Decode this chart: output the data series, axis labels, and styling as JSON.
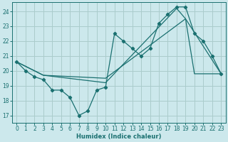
{
  "xlabel": "Humidex (Indice chaleur)",
  "bg_color": "#cce8ec",
  "grid_color": "#aacccc",
  "line_color": "#1a7070",
  "xlim": [
    -0.5,
    23.5
  ],
  "ylim": [
    16.5,
    24.6
  ],
  "yticks": [
    17,
    18,
    19,
    20,
    21,
    22,
    23,
    24
  ],
  "xticks": [
    0,
    1,
    2,
    3,
    4,
    5,
    6,
    7,
    8,
    9,
    10,
    11,
    12,
    13,
    14,
    15,
    16,
    17,
    18,
    19,
    20,
    21,
    22,
    23
  ],
  "curve1_x": [
    0,
    1,
    2,
    3,
    4,
    5,
    6,
    7,
    8,
    9,
    10,
    11,
    12,
    13,
    14,
    15,
    16,
    17,
    18,
    19,
    20,
    21,
    22,
    23
  ],
  "curve1_y": [
    20.6,
    20.0,
    19.6,
    19.4,
    18.7,
    18.7,
    18.2,
    17.0,
    17.3,
    18.7,
    18.9,
    22.5,
    22.0,
    21.5,
    21.0,
    21.5,
    23.2,
    23.8,
    24.3,
    24.3,
    22.5,
    22.0,
    21.0,
    19.8
  ],
  "curve2_x": [
    0,
    3,
    10,
    18,
    19,
    23
  ],
  "curve2_y": [
    20.6,
    19.7,
    19.2,
    24.2,
    23.5,
    19.8
  ],
  "curve3_x": [
    0,
    3,
    10,
    19,
    20,
    23
  ],
  "curve3_y": [
    20.6,
    19.7,
    19.5,
    23.5,
    19.8,
    19.8
  ]
}
